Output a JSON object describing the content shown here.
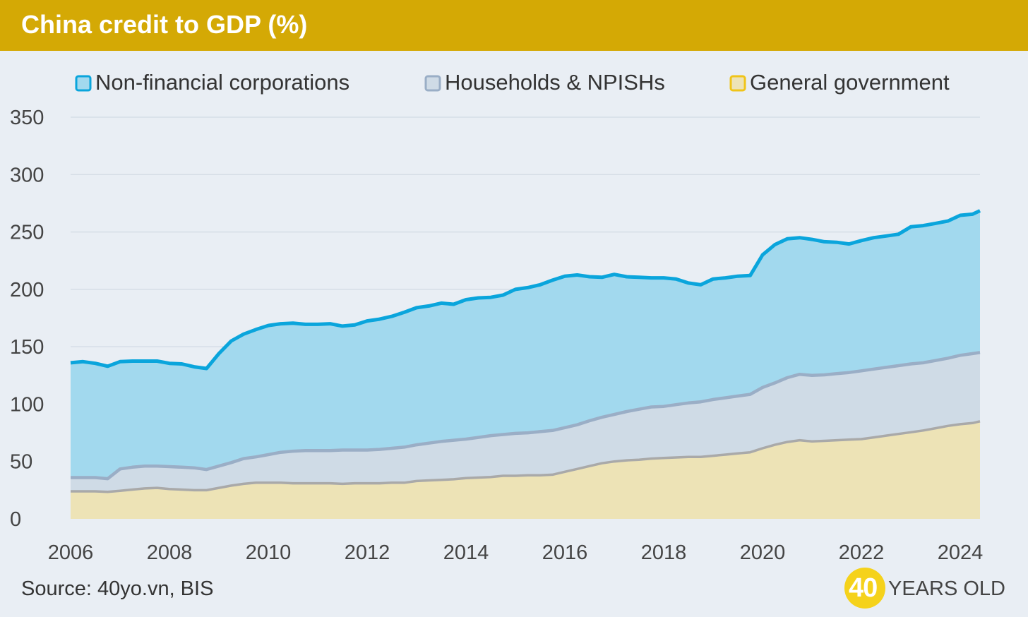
{
  "header": {
    "title": "China credit to GDP (%)"
  },
  "footer": {
    "source": "Source: 40yo.vn, BIS",
    "brand_number": "40",
    "brand_text": "YEARS OLD"
  },
  "colors": {
    "header_bg": "#d4a905",
    "nfc_line": "#0aa5dc",
    "nfc_fill": "#a2d9ee",
    "hh_line": "#9aaec6",
    "hh_fill": "#cfdbe6",
    "gov_line": "#a9a9a9",
    "gov_fill": "#ede3b6"
  },
  "chart_data": {
    "type": "area",
    "stacked": true,
    "title": "China credit to GDP (%)",
    "xlabel": "",
    "ylabel": "",
    "xlim": [
      2006,
      2024.4
    ],
    "ylim": [
      0,
      350
    ],
    "yticks": [
      "0",
      "50",
      "100",
      "150",
      "200",
      "250",
      "300",
      "350"
    ],
    "xticks": [
      "2006",
      "2008",
      "2010",
      "2012",
      "2014",
      "2016",
      "2018",
      "2020",
      "2022",
      "2024"
    ],
    "grid": true,
    "legend_position": "top",
    "legend": [
      "Non-financial corporations",
      "Households & NPISHs",
      "General government"
    ],
    "x": [
      2006.0,
      2006.25,
      2006.5,
      2006.75,
      2007.0,
      2007.25,
      2007.5,
      2007.75,
      2008.0,
      2008.25,
      2008.5,
      2008.75,
      2009.0,
      2009.25,
      2009.5,
      2009.75,
      2010.0,
      2010.25,
      2010.5,
      2010.75,
      2011.0,
      2011.25,
      2011.5,
      2011.75,
      2012.0,
      2012.25,
      2012.5,
      2012.75,
      2013.0,
      2013.25,
      2013.5,
      2013.75,
      2014.0,
      2014.25,
      2014.5,
      2014.75,
      2015.0,
      2015.25,
      2015.5,
      2015.75,
      2016.0,
      2016.25,
      2016.5,
      2016.75,
      2017.0,
      2017.25,
      2017.5,
      2017.75,
      2018.0,
      2018.25,
      2018.5,
      2018.75,
      2019.0,
      2019.25,
      2019.5,
      2019.75,
      2020.0,
      2020.25,
      2020.5,
      2020.75,
      2021.0,
      2021.25,
      2021.5,
      2021.75,
      2022.0,
      2022.25,
      2022.5,
      2022.75,
      2023.0,
      2023.25,
      2023.5,
      2023.75,
      2024.0,
      2024.25,
      2024.4
    ],
    "series": [
      {
        "name": "General government",
        "values": [
          24,
          24,
          24,
          23.5,
          24.5,
          25.5,
          26.5,
          27,
          26,
          25.5,
          25,
          25,
          27,
          29,
          30.5,
          31.5,
          31.5,
          31.5,
          31,
          31,
          31,
          31,
          30.5,
          31,
          31,
          31,
          31.5,
          31.5,
          33,
          33.5,
          34,
          34.5,
          35.5,
          36,
          36.5,
          37.5,
          37.5,
          38,
          38,
          38.5,
          41,
          43.5,
          46,
          48.5,
          50,
          51,
          51.5,
          52.5,
          53,
          53.5,
          54,
          54,
          55,
          56,
          57,
          58,
          61.5,
          64.5,
          67,
          68.5,
          67.5,
          68,
          68.5,
          69,
          69.5,
          71,
          72.5,
          74,
          75.5,
          77,
          79,
          81,
          82.5,
          83.5,
          85
        ]
      },
      {
        "name": "Households & NPISHs",
        "values": [
          12,
          12,
          12,
          11.5,
          19,
          19.5,
          19.5,
          19,
          19.5,
          19.5,
          19.5,
          18,
          19,
          20,
          22,
          22.5,
          24.5,
          26.5,
          28,
          28.5,
          28.5,
          28.5,
          29.5,
          29,
          29,
          29.5,
          30,
          31,
          31.5,
          32.5,
          33.5,
          34,
          34,
          35,
          36,
          36,
          37,
          37,
          38,
          38.5,
          38.5,
          38.5,
          39.5,
          40,
          41,
          42.5,
          44,
          45,
          45,
          46,
          47,
          48,
          49,
          49.5,
          50,
          50.5,
          53,
          54,
          56,
          57.5,
          57.5,
          57.5,
          58,
          58.5,
          59.5,
          59.5,
          59.5,
          59.5,
          59.5,
          59,
          59,
          59,
          60,
          60.5,
          60
        ]
      },
      {
        "name": "Non-financial corporations",
        "values": [
          100,
          101,
          99.5,
          98,
          93.5,
          92.5,
          91.5,
          91.5,
          90,
          90,
          88,
          88,
          98,
          106,
          108.5,
          111,
          112.5,
          112,
          111.5,
          110,
          110,
          110.5,
          108,
          109,
          112.5,
          113.5,
          115,
          117.5,
          119.5,
          119.5,
          120.5,
          118.5,
          121.5,
          121.5,
          120.5,
          121.5,
          125.5,
          126.5,
          128,
          131,
          132,
          130.5,
          125.5,
          122,
          122,
          117.5,
          115,
          112.5,
          112,
          109.5,
          104.5,
          102,
          105,
          104.5,
          104.5,
          103.5,
          115.5,
          120.5,
          121,
          119,
          118.5,
          116,
          114.5,
          112,
          113.5,
          114.5,
          114.5,
          114.5,
          119.5,
          119.5,
          119.5,
          119.5,
          122,
          121.5,
          123.5
        ]
      }
    ]
  }
}
